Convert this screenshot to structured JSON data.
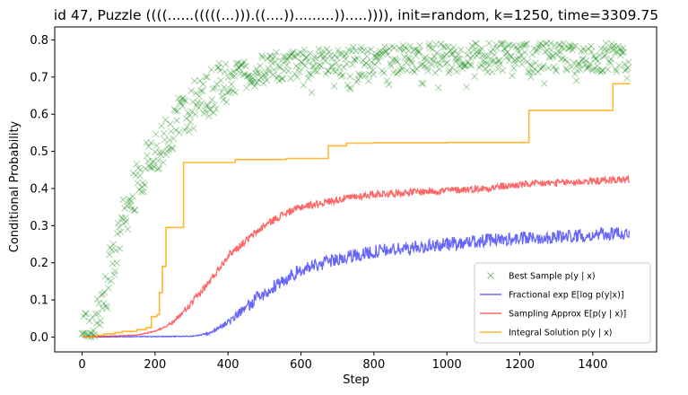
{
  "chart_data": {
    "type": "line",
    "title": "id 47, Puzzle ((((......(((((...))).((....)).........)).....)))), init=random, k=1250, time=3309.75",
    "xlabel": "Step",
    "ylabel": "Conditional Probability",
    "xlim": [
      -75,
      1575
    ],
    "ylim": [
      -0.04,
      0.835
    ],
    "xticks": [
      0,
      200,
      400,
      600,
      800,
      1000,
      1200,
      1400
    ],
    "yticks": [
      0.0,
      0.1,
      0.2,
      0.3,
      0.4,
      0.5,
      0.6,
      0.7,
      0.8
    ],
    "xtick_labels": [
      "0",
      "200",
      "400",
      "600",
      "800",
      "1000",
      "1200",
      "1400"
    ],
    "ytick_labels": [
      "0.0",
      "0.1",
      "0.2",
      "0.3",
      "0.4",
      "0.5",
      "0.6",
      "0.7",
      "0.8"
    ],
    "legend_position": "lower-right",
    "series": [
      {
        "name": "Best Sample",
        "legend_label": "Best Sample p(y | x)",
        "color": "#008000",
        "kind": "scatter",
        "marker": "x",
        "trend": {
          "x": [
            0,
            25,
            50,
            75,
            100,
            125,
            150,
            175,
            200,
            250,
            300,
            350,
            400,
            450,
            500,
            550,
            600,
            700,
            800,
            900,
            1000,
            1100,
            1200,
            1300,
            1400,
            1500
          ],
          "y": [
            0.0,
            0.01,
            0.06,
            0.17,
            0.27,
            0.35,
            0.41,
            0.46,
            0.5,
            0.57,
            0.62,
            0.66,
            0.69,
            0.71,
            0.72,
            0.73,
            0.735,
            0.74,
            0.745,
            0.75,
            0.75,
            0.752,
            0.752,
            0.752,
            0.753,
            0.755
          ]
        },
        "spread": 0.04
      },
      {
        "name": "Fractional",
        "legend_label": "Fractional exp E[log p(y|x)]",
        "color": "#0000ff",
        "kind": "line",
        "trend": {
          "x": [
            0,
            300,
            350,
            400,
            450,
            500,
            550,
            600,
            700,
            800,
            900,
            1000,
            1100,
            1200,
            1300,
            1400,
            1500
          ],
          "y": [
            0.0,
            0.002,
            0.01,
            0.04,
            0.08,
            0.12,
            0.15,
            0.18,
            0.21,
            0.23,
            0.24,
            0.25,
            0.26,
            0.265,
            0.27,
            0.275,
            0.28
          ]
        },
        "noise": 0.018
      },
      {
        "name": "Sampling Approx",
        "legend_label": "Sampling Approx E[p(y | x)]",
        "color": "#ff0000",
        "kind": "line",
        "trend": {
          "x": [
            0,
            150,
            200,
            250,
            300,
            350,
            400,
            450,
            500,
            550,
            600,
            700,
            800,
            900,
            1000,
            1100,
            1200,
            1300,
            1400,
            1500
          ],
          "y": [
            0.0,
            0.005,
            0.015,
            0.04,
            0.09,
            0.15,
            0.22,
            0.26,
            0.3,
            0.33,
            0.35,
            0.37,
            0.385,
            0.39,
            0.395,
            0.4,
            0.41,
            0.415,
            0.42,
            0.425
          ]
        },
        "noise": 0.01
      },
      {
        "name": "Integral Solution",
        "legend_label": "Integral Solution p(y | x)",
        "color": "#ffa500",
        "kind": "step",
        "x": [
          0,
          40,
          60,
          90,
          110,
          150,
          175,
          190,
          205,
          212,
          220,
          230,
          278,
          420,
          560,
          675,
          725,
          800,
          1000,
          1225,
          1455,
          1500
        ],
        "y": [
          0.0,
          0.005,
          0.008,
          0.012,
          0.015,
          0.02,
          0.025,
          0.055,
          0.06,
          0.12,
          0.19,
          0.295,
          0.47,
          0.478,
          0.481,
          0.515,
          0.522,
          0.523,
          0.524,
          0.61,
          0.682,
          0.685
        ]
      }
    ]
  }
}
